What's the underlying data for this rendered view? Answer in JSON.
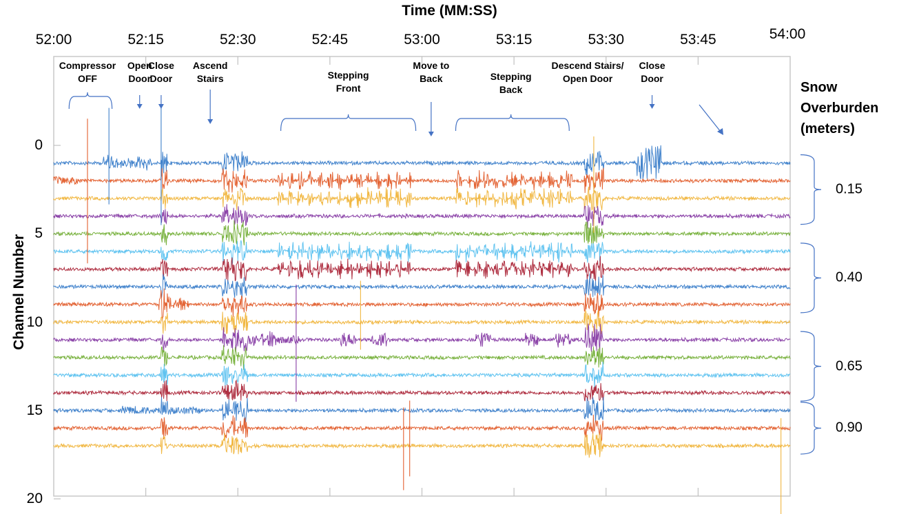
{
  "chart_data": {
    "type": "line",
    "title": "Time (MM:SS)",
    "xlabel": "Time (MM:SS)",
    "ylabel": "Channel Number",
    "x_ticks": [
      "52:00",
      "52:15",
      "52:30",
      "52:45",
      "53:00",
      "53:15",
      "53:30",
      "53:45",
      "54:00"
    ],
    "x_range_seconds": [
      0,
      120
    ],
    "y_ticks": [
      "0",
      "5",
      "10",
      "15",
      "20"
    ],
    "y_range": [
      0,
      20
    ],
    "y_inverted": true,
    "grid": false,
    "series": [
      {
        "name": "Channel 1",
        "channel": 1,
        "color": "#2e75c6"
      },
      {
        "name": "Channel 2",
        "channel": 2,
        "color": "#e0531f"
      },
      {
        "name": "Channel 3",
        "channel": 3,
        "color": "#f0b030"
      },
      {
        "name": "Channel 4",
        "channel": 4,
        "color": "#7e2f9e"
      },
      {
        "name": "Channel 5",
        "channel": 5,
        "color": "#6aaa2a"
      },
      {
        "name": "Channel 6",
        "channel": 6,
        "color": "#4fbdee"
      },
      {
        "name": "Channel 7",
        "channel": 7,
        "color": "#a6192e"
      },
      {
        "name": "Channel 8",
        "channel": 8,
        "color": "#2e75c6"
      },
      {
        "name": "Channel 9",
        "channel": 9,
        "color": "#e0531f"
      },
      {
        "name": "Channel 10",
        "channel": 10,
        "color": "#f0b030"
      },
      {
        "name": "Channel 11",
        "channel": 11,
        "color": "#7e2f9e"
      },
      {
        "name": "Channel 12",
        "channel": 12,
        "color": "#6aaa2a"
      },
      {
        "name": "Channel 13",
        "channel": 13,
        "color": "#4fbdee"
      },
      {
        "name": "Channel 14",
        "channel": 14,
        "color": "#a6192e"
      },
      {
        "name": "Channel 15",
        "channel": 15,
        "color": "#2e75c6"
      },
      {
        "name": "Channel 16",
        "channel": 16,
        "color": "#e0531f"
      },
      {
        "name": "Channel 17",
        "channel": 17,
        "color": "#f0b030"
      }
    ],
    "annotations": [
      {
        "label": "Compressor OFF",
        "lines": [
          "Compressor",
          "OFF"
        ],
        "time_s": 5.5,
        "marker": "bracket",
        "span_s": [
          2.5,
          9.5
        ]
      },
      {
        "label": "Open Door",
        "lines": [
          "Open",
          "Door"
        ],
        "time_s": 14.0,
        "marker": "arrow"
      },
      {
        "label": "Close Door",
        "lines": [
          "Close",
          "Door"
        ],
        "time_s": 17.5,
        "marker": "arrow"
      },
      {
        "label": "Ascend Stairs",
        "lines": [
          "Ascend",
          "Stairs"
        ],
        "time_s": 25.5,
        "marker": "arrow"
      },
      {
        "label": "Stepping Front",
        "lines": [
          "Stepping",
          "Front"
        ],
        "time_s": 48.0,
        "marker": "bracket",
        "span_s": [
          37.0,
          59.0
        ]
      },
      {
        "label": "Move to Back",
        "lines": [
          "Move to",
          "Back"
        ],
        "time_s": 61.5,
        "marker": "arrow"
      },
      {
        "label": "Stepping Back",
        "lines": [
          "Stepping",
          "Back"
        ],
        "time_s": 74.5,
        "marker": "bracket",
        "span_s": [
          65.5,
          84.0
        ]
      },
      {
        "label": "Descend Stairs/ Open Door",
        "lines": [
          "Descend Stairs/",
          "Open Door"
        ],
        "time_s": 87.0,
        "marker": "diag-arrow"
      },
      {
        "label": "Close Door",
        "lines": [
          "Close",
          "Door"
        ],
        "time_s": 97.5,
        "marker": "arrow"
      }
    ],
    "legend": {
      "title_lines": [
        "Snow",
        "Overburden",
        "(meters)"
      ],
      "position": "right",
      "groups": [
        {
          "label": "0.15",
          "channels": [
            1,
            4
          ]
        },
        {
          "label": "0.40",
          "channels": [
            6,
            9
          ]
        },
        {
          "label": "0.65",
          "channels": [
            11,
            14
          ]
        },
        {
          "label": "0.90",
          "channels": [
            15,
            17
          ]
        }
      ]
    }
  }
}
